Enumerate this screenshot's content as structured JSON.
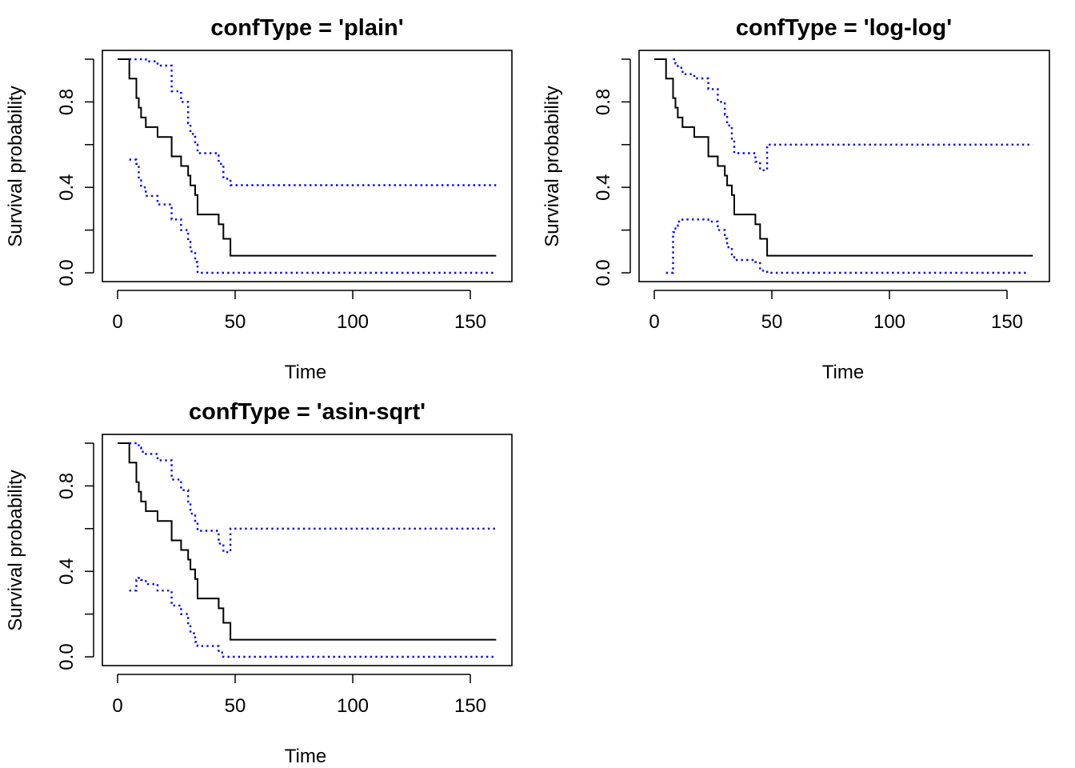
{
  "chart_data": [
    {
      "type": "line",
      "title": "confType = 'plain'",
      "xlabel": "Time",
      "ylabel": "Survival probability",
      "xlim": [
        0,
        160
      ],
      "ylim": [
        0,
        1
      ],
      "xticks": [
        "0",
        "50",
        "100",
        "150"
      ],
      "yticks": [
        "0.0",
        "0.4",
        "0.8"
      ],
      "colors": {
        "estimate": "#000000",
        "confidence": "#0000ff"
      },
      "grid": false,
      "series": [
        {
          "x": [
            0,
            5,
            8,
            9,
            10,
            12,
            17,
            23,
            27,
            30,
            31,
            33,
            34,
            43,
            45,
            48,
            161
          ],
          "y": [
            1.0,
            0.909,
            0.818,
            0.773,
            0.727,
            0.682,
            0.636,
            0.545,
            0.5,
            0.455,
            0.409,
            0.364,
            0.273,
            0.227,
            0.159,
            0.08,
            0.08
          ]
        },
        {
          "x": [
            5,
            8,
            9,
            10,
            12,
            17,
            23,
            27,
            30,
            31,
            33,
            34,
            43,
            45,
            48,
            161
          ],
          "y": [
            1.0,
            1.0,
            1.0,
            1.0,
            0.99,
            0.97,
            0.85,
            0.8,
            0.7,
            0.65,
            0.6,
            0.56,
            0.51,
            0.44,
            0.41,
            0.41
          ]
        },
        {
          "x": [
            5,
            8,
            9,
            10,
            12,
            17,
            23,
            27,
            30,
            31,
            33,
            34,
            161
          ],
          "y": [
            0.53,
            0.51,
            0.44,
            0.4,
            0.36,
            0.32,
            0.25,
            0.2,
            0.15,
            0.1,
            0.05,
            0.0,
            0.0
          ]
        }
      ]
    },
    {
      "type": "line",
      "title": "confType = 'log-log'",
      "xlabel": "Time",
      "ylabel": "Survival probability",
      "xlim": [
        0,
        160
      ],
      "ylim": [
        0,
        1
      ],
      "xticks": [
        "0",
        "50",
        "100",
        "150"
      ],
      "yticks": [
        "0.0",
        "0.4",
        "0.8"
      ],
      "colors": {
        "estimate": "#000000",
        "confidence": "#0000ff"
      },
      "grid": false,
      "series": [
        {
          "x": [
            0,
            5,
            8,
            9,
            10,
            12,
            17,
            23,
            27,
            30,
            31,
            33,
            34,
            43,
            45,
            48,
            161
          ],
          "y": [
            1.0,
            0.909,
            0.818,
            0.773,
            0.727,
            0.682,
            0.636,
            0.545,
            0.5,
            0.455,
            0.409,
            0.364,
            0.273,
            0.227,
            0.159,
            0.08,
            0.08
          ]
        },
        {
          "x": [
            8,
            9,
            10,
            12,
            17,
            23,
            27,
            30,
            31,
            33,
            34,
            43,
            45,
            48,
            161
          ],
          "y": [
            1.0,
            0.98,
            0.96,
            0.93,
            0.91,
            0.86,
            0.8,
            0.74,
            0.69,
            0.62,
            0.56,
            0.52,
            0.48,
            0.6,
            0.6
          ]
        },
        {
          "x": [
            5,
            8,
            9,
            10,
            12,
            17,
            23,
            27,
            30,
            31,
            33,
            34,
            43,
            45,
            48,
            159
          ],
          "y": [
            0.0,
            0.19,
            0.22,
            0.24,
            0.25,
            0.25,
            0.24,
            0.2,
            0.16,
            0.12,
            0.08,
            0.06,
            0.05,
            0.01,
            0.0,
            0.0
          ]
        }
      ]
    },
    {
      "type": "line",
      "title": "confType = 'asin-sqrt'",
      "xlabel": "Time",
      "ylabel": "Survival probability",
      "xlim": [
        0,
        160
      ],
      "ylim": [
        0,
        1
      ],
      "xticks": [
        "0",
        "50",
        "100",
        "150"
      ],
      "yticks": [
        "0.0",
        "0.4",
        "0.8"
      ],
      "colors": {
        "estimate": "#000000",
        "confidence": "#0000ff"
      },
      "grid": false,
      "series": [
        {
          "x": [
            0,
            5,
            8,
            9,
            10,
            12,
            17,
            23,
            27,
            30,
            31,
            33,
            34,
            43,
            45,
            48,
            161
          ],
          "y": [
            1.0,
            0.909,
            0.818,
            0.773,
            0.727,
            0.682,
            0.636,
            0.545,
            0.5,
            0.455,
            0.409,
            0.364,
            0.273,
            0.227,
            0.159,
            0.08,
            0.08
          ]
        },
        {
          "x": [
            5,
            8,
            9,
            10,
            12,
            17,
            23,
            27,
            30,
            31,
            33,
            34,
            43,
            45,
            48,
            161
          ],
          "y": [
            1.0,
            1.0,
            0.98,
            0.96,
            0.95,
            0.92,
            0.83,
            0.78,
            0.72,
            0.67,
            0.63,
            0.59,
            0.53,
            0.49,
            0.6,
            0.6
          ]
        },
        {
          "x": [
            5,
            8,
            9,
            10,
            12,
            17,
            23,
            27,
            30,
            31,
            33,
            34,
            43,
            45,
            161
          ],
          "y": [
            0.31,
            0.36,
            0.37,
            0.36,
            0.34,
            0.31,
            0.24,
            0.2,
            0.15,
            0.11,
            0.07,
            0.05,
            0.02,
            0.0,
            0.0
          ]
        }
      ]
    }
  ]
}
